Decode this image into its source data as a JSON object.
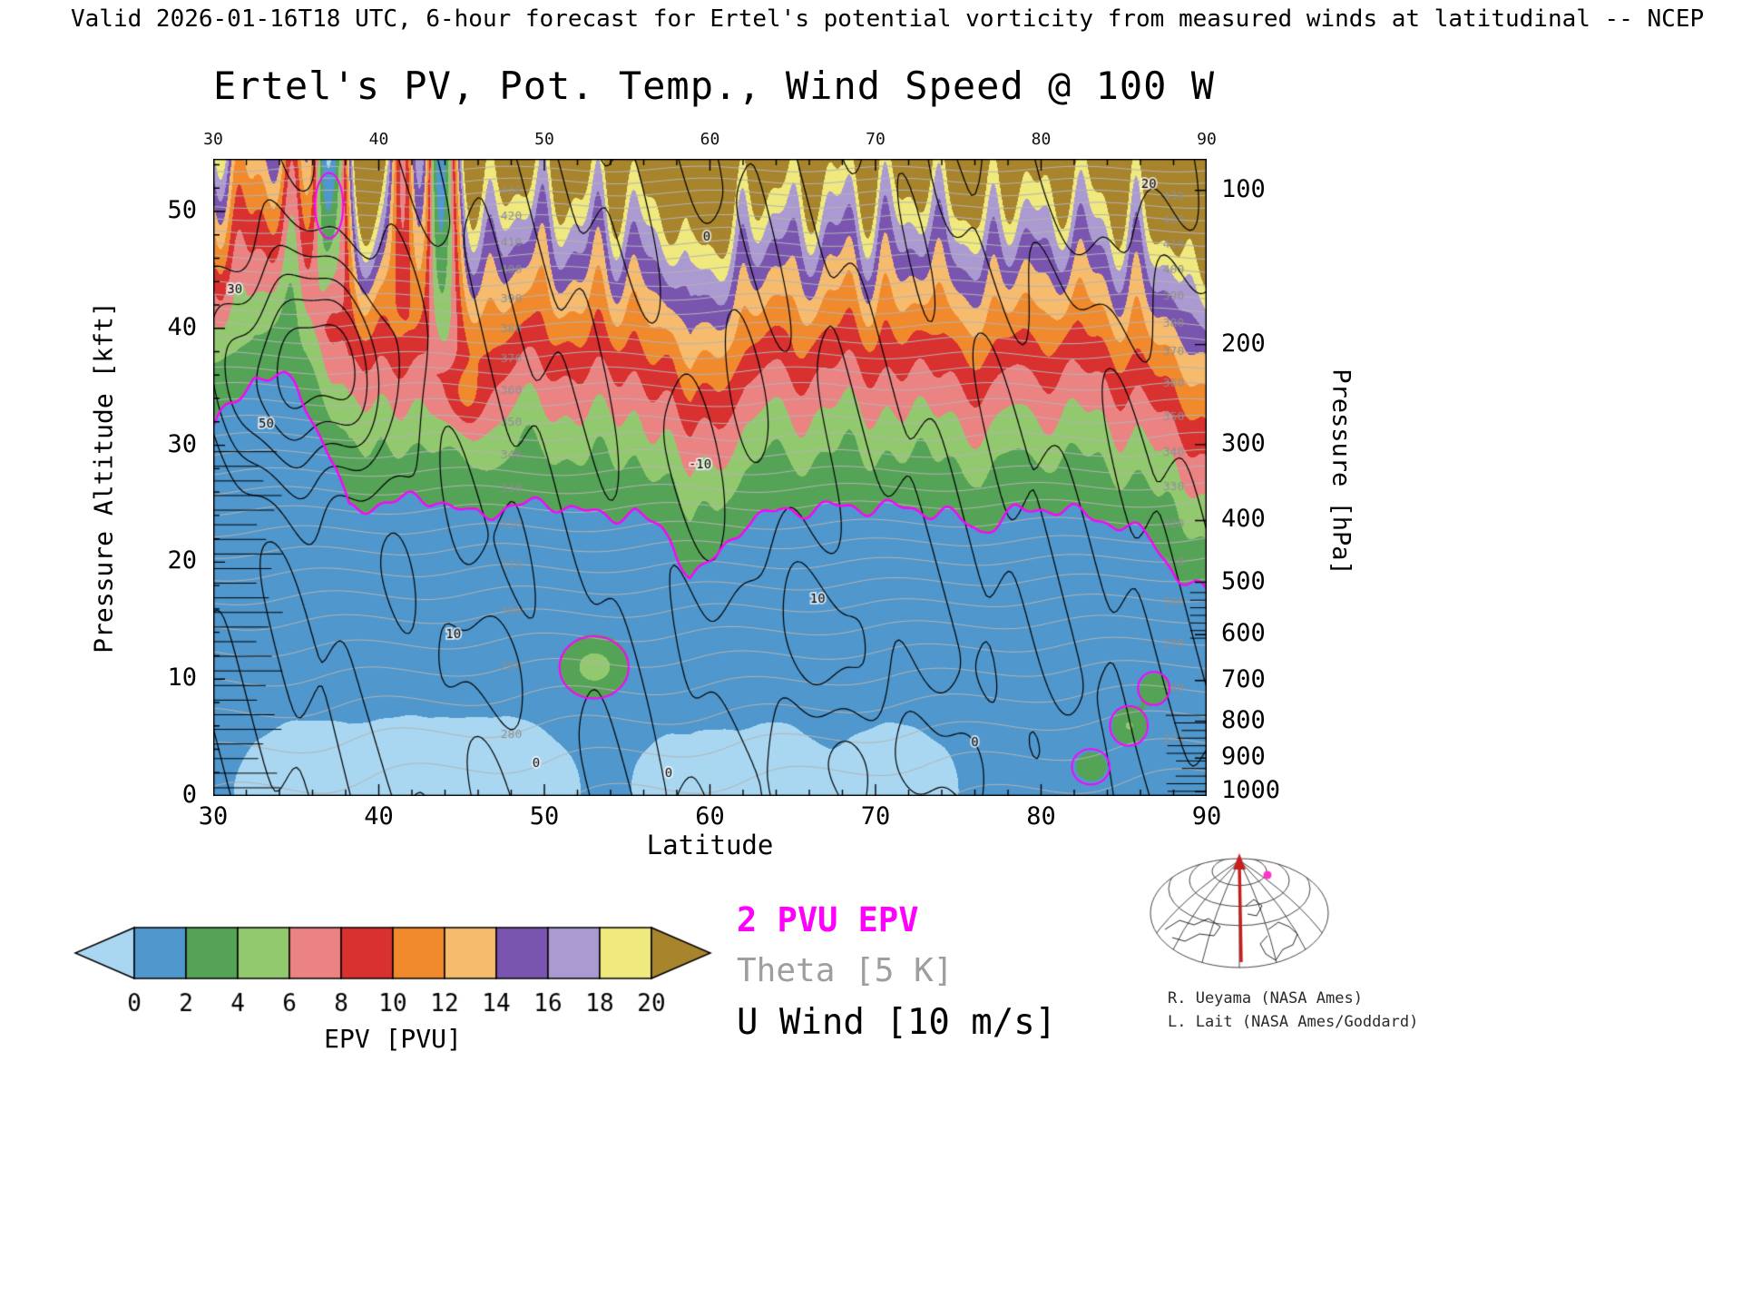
{
  "header": {
    "valid_line": "Valid 2026-01-16T18 UTC, 6-hour forecast for Ertel's potential vorticity from measured winds at latitudinal -- NCEP"
  },
  "chart_data": {
    "type": "heatmap",
    "title": "Ertel's PV, Pot. Temp., Wind Speed @ 100 W",
    "xlabel": "Latitude",
    "ylabel_left": "Pressure Altitude [kft]",
    "ylabel_right": "Pressure [hPa]",
    "xlim": [
      30,
      90
    ],
    "ylim_kft": [
      0,
      54.5
    ],
    "x_ticks": [
      30,
      40,
      50,
      60,
      70,
      80,
      90
    ],
    "y_ticks_kft": [
      0,
      10,
      20,
      30,
      40,
      50
    ],
    "y_ticks_hpa": [
      100,
      200,
      300,
      400,
      500,
      600,
      700,
      800,
      900,
      1000
    ],
    "colorbar": {
      "label": "EPV [PVU]",
      "ticks": [
        0,
        2,
        4,
        6,
        8,
        10,
        12,
        14,
        16,
        18,
        20
      ],
      "colors": [
        "#a9d7f1",
        "#4f97cd",
        "#55a357",
        "#93c96e",
        "#ec8383",
        "#d93030",
        "#f08a2d",
        "#f7bb6e",
        "#7a55b0",
        "#ab9ad2",
        "#efe97e",
        "#a8842c"
      ]
    },
    "legend": [
      {
        "label": "2 PVU EPV",
        "color": "#ff00ff"
      },
      {
        "label": "Theta [5 K]",
        "color": "#9e9e9e"
      },
      {
        "label": "U Wind [10 m/s]",
        "color": "#000000"
      }
    ],
    "tropopause_2pvu": {
      "lat": [
        30,
        32.5,
        35,
        37.4,
        38.2,
        40,
        43.4,
        45.6,
        47.8,
        50.5,
        53.3,
        55.5,
        57.7,
        58.8,
        60.4,
        62.1,
        64.2,
        67.5,
        70.8,
        74.1,
        76.3,
        78.5,
        80.7,
        82.9,
        85.1,
        86.7,
        88.3,
        90
      ],
      "kft": [
        31.4,
        36,
        35.3,
        28,
        24.3,
        25.1,
        25.5,
        23.9,
        24.7,
        25.1,
        23.9,
        24.3,
        21.9,
        18.7,
        20.3,
        23.5,
        24.3,
        24.7,
        24.7,
        24.3,
        22.7,
        24.3,
        24.7,
        23.9,
        23.1,
        21.9,
        18.7,
        17.2
      ]
    },
    "epv_anomalies": [
      {
        "lat": 53,
        "z": 11,
        "amp": 4.5,
        "slat": 2.2,
        "sz": 2.8
      },
      {
        "lat": 83,
        "z": 2.5,
        "amp": 3.5,
        "slat": 1.2,
        "sz": 1.6
      },
      {
        "lat": 85.3,
        "z": 6,
        "amp": 4.0,
        "slat": 1.2,
        "sz": 1.8
      },
      {
        "lat": 86.8,
        "z": 9.2,
        "amp": 3.6,
        "slat": 1.0,
        "sz": 1.5
      }
    ],
    "column_streaks": [
      {
        "lat": 37,
        "sig": 0.9,
        "amp": -1.5,
        "zbase": 40
      },
      {
        "lat": 41.5,
        "sig": 1.1,
        "amp": -0.85,
        "zbase": 40
      },
      {
        "lat": 43.8,
        "sig": 0.95,
        "amp": -1.05,
        "zbase": 36
      },
      {
        "lat": 39.6,
        "sig": 1.0,
        "amp": 0.5,
        "zbase": 42
      }
    ],
    "red_blob": {
      "lat": 45,
      "z": 34,
      "amp": 4,
      "slat": 1.2,
      "sz": 3
    },
    "neg_surface": [
      {
        "lat": 42,
        "s": 5,
        "a": 0.9
      },
      {
        "lat": 47.5,
        "s": 2.5,
        "a": 0.8
      },
      {
        "lat": 59.5,
        "s": 2.5,
        "a": 0.75
      },
      {
        "lat": 64,
        "s": 2,
        "a": 0.6
      },
      {
        "lat": 71,
        "s": 2.5,
        "a": 0.55
      }
    ],
    "theta": {
      "c0": 275,
      "c1": 1.2,
      "c2": 0.035,
      "latgrad": 0.22,
      "step": 5,
      "min": 255,
      "max": 440,
      "label_step": 10,
      "label_min": 260,
      "label_max": 430,
      "label_lats": [
        48,
        88
      ]
    },
    "uwind": {
      "levels": [
        -10,
        0,
        10,
        20,
        30,
        40,
        50
      ],
      "jets": [
        {
          "lat": 35.8,
          "z": 36.5,
          "amp": 58,
          "slat": 5.5,
          "sz": 9.5
        },
        {
          "lat": 60,
          "z": 30,
          "amp": -14,
          "slat": 4.5,
          "sz": 13
        },
        {
          "lat": 66,
          "z": 14,
          "amp": 15,
          "slat": 5,
          "sz": 7
        },
        {
          "lat": 72,
          "z": 3,
          "amp": -13,
          "slat": 9,
          "sz": 5
        },
        {
          "lat": 84,
          "z": 55,
          "amp": 26,
          "slat": 9,
          "sz": 14
        },
        {
          "lat": 46,
          "z": 11,
          "amp": 13,
          "slat": 5,
          "sz": 6
        }
      ],
      "labels": [
        {
          "t": "50",
          "lat": 33.2,
          "z": 31.5
        },
        {
          "t": "30",
          "lat": 31.3,
          "z": 43
        },
        {
          "t": "10",
          "lat": 44.5,
          "z": 13.5
        },
        {
          "t": "0",
          "lat": 49.5,
          "z": 2.5
        },
        {
          "t": "0",
          "lat": 57.5,
          "z": 1.6
        },
        {
          "t": "-10",
          "lat": 59.4,
          "z": 28
        },
        {
          "t": "0",
          "lat": 59.8,
          "z": 47.5
        },
        {
          "t": "10",
          "lat": 66.5,
          "z": 16.5
        },
        {
          "t": "0",
          "lat": 76,
          "z": 4.3
        },
        {
          "t": "20",
          "lat": 86.5,
          "z": 52
        }
      ]
    },
    "hatch": {
      "left": {
        "z0": 0.7,
        "z1": 30.5,
        "step": 1.25,
        "width_deg": 3.4
      },
      "bottom_right": {
        "z0": 0.4,
        "z1": 7,
        "step": 0.65,
        "width_deg": 2.0
      },
      "mid_right": {
        "z0": 13.5,
        "z1": 18,
        "step": 0.65,
        "width_deg": 1.0
      }
    },
    "magenta_rings": [
      {
        "lat": 37,
        "z": 50.5,
        "rlat": 0.85,
        "rz": 2.8
      }
    ]
  },
  "inset_map": {
    "meridian_color": "#c22020",
    "marker_color": "#ff33cc"
  },
  "credits": {
    "line1": "R. Ueyama (NASA Ames)",
    "line2": "L. Lait (NASA Ames/Goddard)"
  }
}
